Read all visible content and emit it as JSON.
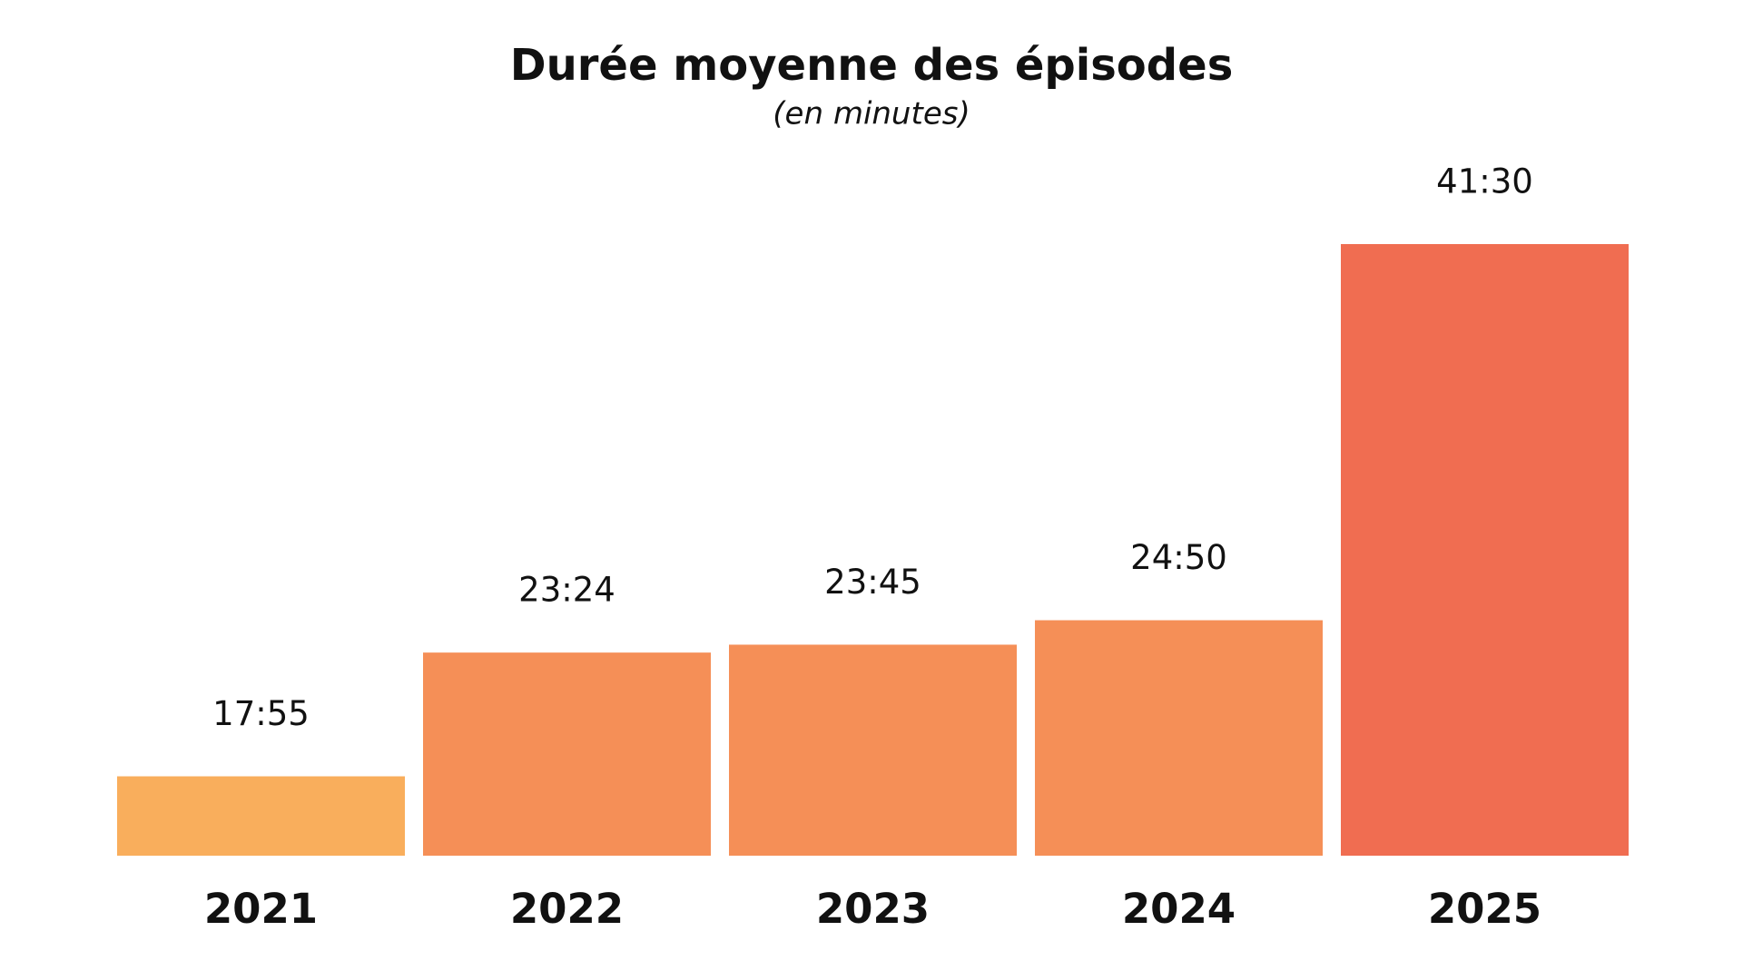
{
  "chart_data": {
    "type": "bar",
    "title": "Durée moyenne des épisodes",
    "subtitle": "(en minutes)",
    "categories": [
      "2021",
      "2022",
      "2023",
      "2024",
      "2025"
    ],
    "values": [
      17.917,
      23.4,
      23.75,
      24.833,
      41.5
    ],
    "value_labels": [
      "17:55",
      "23:24",
      "23:45",
      "24:50",
      "41:30"
    ],
    "colors": [
      "#f9ae5c",
      "#f58f57",
      "#f58f57",
      "#f58f57",
      "#f06d51"
    ],
    "ylim": [
      14.4,
      41.5
    ]
  }
}
